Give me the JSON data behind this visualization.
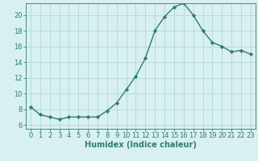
{
  "x": [
    0,
    1,
    2,
    3,
    4,
    5,
    6,
    7,
    8,
    9,
    10,
    11,
    12,
    13,
    14,
    15,
    16,
    17,
    18,
    19,
    20,
    21,
    22,
    23
  ],
  "y": [
    8.3,
    7.3,
    7.0,
    6.7,
    7.0,
    7.0,
    7.0,
    7.0,
    7.8,
    8.8,
    10.5,
    12.2,
    14.5,
    18.0,
    19.8,
    21.0,
    21.5,
    20.0,
    18.0,
    16.5,
    16.0,
    15.3,
    15.5,
    15.0
  ],
  "line_color": "#2e7d6e",
  "marker": "D",
  "marker_size": 2.2,
  "bg_color": "#d8f0f0",
  "grid_color": "#b0d8d8",
  "xlabel": "Humidex (Indice chaleur)",
  "xlim": [
    -0.5,
    23.5
  ],
  "ylim": [
    5.5,
    21.5
  ],
  "yticks": [
    6,
    8,
    10,
    12,
    14,
    16,
    18,
    20
  ],
  "xticks": [
    0,
    1,
    2,
    3,
    4,
    5,
    6,
    7,
    8,
    9,
    10,
    11,
    12,
    13,
    14,
    15,
    16,
    17,
    18,
    19,
    20,
    21,
    22,
    23
  ],
  "xlabel_fontsize": 7,
  "tick_fontsize": 6,
  "line_width": 1.0
}
